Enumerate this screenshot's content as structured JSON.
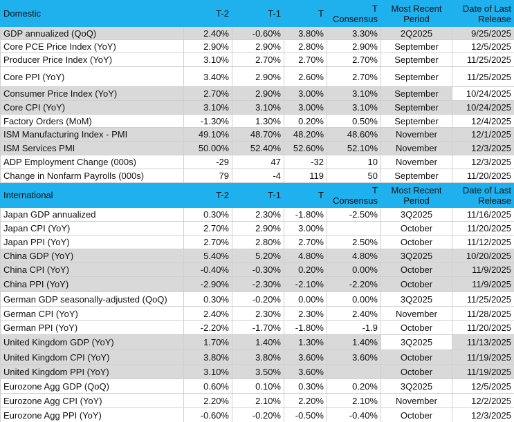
{
  "sections": [
    {
      "header": [
        "Domestic",
        "T-2",
        "T-1",
        "T",
        "T Consensus",
        "Most Recent Period",
        "Date of Last Release"
      ],
      "rows": [
        [
          "GDP annualized (QoQ)",
          "2.40%",
          "-0.60%",
          "3.80%",
          "3.30%",
          "2Q2025",
          "9/25/2025"
        ],
        [
          "Core PCE Price Index (YoY)",
          "2.90%",
          "2.90%",
          "2.80%",
          "2.90%",
          "September",
          "12/5/2025"
        ],
        [
          "Producer Price Index (YoY)",
          "3.10%",
          "2.70%",
          "2.70%",
          "2.70%",
          "September",
          "11/25/2025"
        ],
        [
          "Core PPI (YoY)",
          "3.40%",
          "2.90%",
          "2.60%",
          "2.70%",
          "September",
          "11/25/2025"
        ],
        [
          "Consumer Price Index (YoY)",
          "2.70%",
          "2.90%",
          "3.00%",
          "3.10%",
          "September",
          "10/24/2025"
        ],
        [
          "Core CPI  (YoY)",
          "3.10%",
          "3.10%",
          "3.00%",
          "3.10%",
          "September",
          "10/24/2025"
        ],
        [
          "Factory Orders (MoM)",
          "-1.30%",
          "1.30%",
          "0.20%",
          "0.50%",
          "September",
          "12/4/2025"
        ],
        [
          "ISM Manufacturing Index - PMI",
          "49.10%",
          "48.70%",
          "48.20%",
          "48.60%",
          "November",
          "12/1/2025"
        ],
        [
          "ISM Services PMI",
          "50.00%",
          "52.40%",
          "52.60%",
          "52.10%",
          "November",
          "12/3/2025"
        ],
        [
          "ADP Employment Change (000s)",
          "-29",
          "47",
          "-32",
          "10",
          "November",
          "12/3/2025"
        ],
        [
          "Change in Nonfarm Payrolls (000s)",
          "79",
          "-4",
          "119",
          "50",
          "September",
          "11/20/2025"
        ]
      ]
    },
    {
      "header": [
        "International",
        "T-2",
        "T-1",
        "T",
        "T Consensus",
        "Most Recent Period",
        "Date of Last Release"
      ],
      "rows": [
        [
          "Japan GDP annualized",
          "0.30%",
          "2.30%",
          "-1.80%",
          "-2.50%",
          "3Q2025",
          "11/16/2025"
        ],
        [
          "Japan CPI (YoY)",
          "2.70%",
          "2.90%",
          "3.00%",
          null,
          "October",
          "11/20/2025"
        ],
        [
          "Japan PPI (YoY)",
          "2.70%",
          "2.80%",
          "2.70%",
          "2.50%",
          "October",
          "11/12/2025"
        ],
        [
          "China GDP (YoY)",
          "5.40%",
          "5.20%",
          "4.80%",
          "4.80%",
          "3Q2025",
          "10/20/2025"
        ],
        [
          "China CPI (YoY)",
          "-0.40%",
          "-0.30%",
          "0.20%",
          "0.00%",
          "October",
          "11/9/2025"
        ],
        [
          "China PPI (YoY)",
          "-2.90%",
          "-2.30%",
          "-2.10%",
          "-2.20%",
          "October",
          "11/9/2025"
        ],
        [
          "German GDP seasonally-adjusted (QoQ)",
          "0.30%",
          "-0.20%",
          "0.00%",
          "0.00%",
          "3Q2025",
          "11/25/2025"
        ],
        [
          "German CPI (YoY)",
          "2.40%",
          "2.30%",
          "2.30%",
          "2.40%",
          "November",
          "11/28/2025"
        ],
        [
          "German PPI (YoY)",
          "-2.20%",
          "-1.70%",
          "-1.80%",
          "-1.9",
          "October",
          "11/20/2025"
        ],
        [
          "United Kingdom GDP (YoY)",
          "1.70%",
          "1.40%",
          "1.30%",
          "1.40%",
          "3Q2025",
          "11/13/2025"
        ],
        [
          "United Kingdom CPI (YoY)",
          "3.80%",
          "3.80%",
          "3.60%",
          "3.60%",
          "October",
          "11/19/2025"
        ],
        [
          "United Kingdom  PPI (YoY)",
          "3.10%",
          "3.50%",
          "3.60%",
          null,
          "October",
          "11/19/2025"
        ],
        [
          "Eurozone Agg GDP (QoQ)",
          "0.60%",
          "0.10%",
          "0.30%",
          "0.20%",
          "3Q2025",
          "12/5/2025"
        ],
        [
          "Eurozone Agg CPI (YoY)",
          "2.20%",
          "2.10%",
          "2.20%",
          "2.10%",
          "November",
          "12/2/2025"
        ],
        [
          "Eurozone Agg PPI (YoY)",
          "-0.60%",
          "-0.20%",
          "-0.50%",
          "-0.40%",
          "October",
          "12/3/2025"
        ]
      ]
    }
  ]
}
